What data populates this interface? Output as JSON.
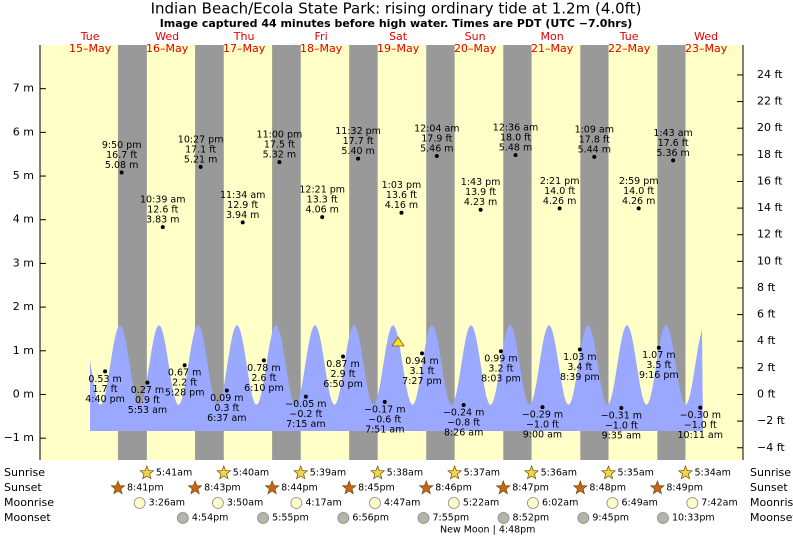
{
  "chart_data": {
    "type": "tide",
    "title": "Indian Beach/Ecola State Park: rising  ordinary tide at 1.2m (4.0ft)",
    "subtitle": "Image captured 44 minutes before high water. Times are PDT (UTC −7.0hrs)",
    "ylim": [
      -1.5,
      8
    ],
    "yticks": [
      {
        "value": -1,
        "label": "−1 m"
      },
      {
        "value": 0,
        "label": "0 m"
      },
      {
        "value": 1,
        "label": "1 m"
      },
      {
        "value": 2,
        "label": "2 m"
      },
      {
        "value": 3,
        "label": "3 m"
      },
      {
        "value": 4,
        "label": "4 m"
      },
      {
        "value": 5,
        "label": "5 m"
      },
      {
        "value": 6,
        "label": "6 m"
      },
      {
        "value": 7,
        "label": "7 m"
      }
    ],
    "y2lim": [
      -4.92,
      26.25
    ],
    "y2ticks": [
      {
        "value": -4,
        "label": "−4 ft"
      },
      {
        "value": -2,
        "label": "−2 ft"
      },
      {
        "value": 0,
        "label": "0 ft"
      },
      {
        "value": 2,
        "label": "2 ft"
      },
      {
        "value": 4,
        "label": "4 ft"
      },
      {
        "value": 6,
        "label": "6 ft"
      },
      {
        "value": 8,
        "label": "8 ft"
      },
      {
        "value": 10,
        "label": "10 ft"
      },
      {
        "value": 12,
        "label": "12 ft"
      },
      {
        "value": 14,
        "label": "14 ft"
      },
      {
        "value": 16,
        "label": "16 ft"
      },
      {
        "value": 18,
        "label": "18 ft"
      },
      {
        "value": 20,
        "label": "20 ft"
      },
      {
        "value": 22,
        "label": "22 ft"
      },
      {
        "value": 24,
        "label": "24 ft"
      }
    ],
    "fill_color": "#9aa8ff",
    "day_color": "#ffffc8",
    "night_color": "#999999",
    "days": [
      {
        "weekday": "Tue",
        "date": "15–May",
        "tides": [
          {
            "time": "4:40 pm",
            "m": {
              "value": 0.53,
              "label": "0.53 m"
            },
            "ft": {
              "value": 1.7,
              "label": "1.7 ft"
            }
          },
          {
            "time": "9:50 pm",
            "m": {
              "value": 5.08,
              "label": "5.08 m"
            },
            "ft": {
              "value": 16.7,
              "label": "16.7 ft"
            }
          }
        ]
      },
      {
        "weekday": "Wed",
        "date": "16–May",
        "tides": [
          {
            "time": "5:53 am",
            "m": {
              "value": 0.27,
              "label": "0.27 m"
            },
            "ft": {
              "value": 0.9,
              "label": "0.9 ft"
            }
          },
          {
            "time": "10:39 am",
            "m": {
              "value": 3.83,
              "label": "3.83 m"
            },
            "ft": {
              "value": 12.6,
              "label": "12.6 ft"
            }
          },
          {
            "time": "5:28 pm",
            "m": {
              "value": 0.67,
              "label": "0.67 m"
            },
            "ft": {
              "value": 2.2,
              "label": "2.2 ft"
            }
          },
          {
            "time": "10:27 pm",
            "m": {
              "value": 5.21,
              "label": "5.21 m"
            },
            "ft": {
              "value": 17.1,
              "label": "17.1 ft"
            }
          }
        ]
      },
      {
        "weekday": "Thu",
        "date": "17–May",
        "tides": [
          {
            "time": "6:37 am",
            "m": {
              "value": 0.09,
              "label": "0.09 m"
            },
            "ft": {
              "value": 0.3,
              "label": "0.3 ft"
            }
          },
          {
            "time": "11:34 am",
            "m": {
              "value": 3.94,
              "label": "3.94 m"
            },
            "ft": {
              "value": 12.9,
              "label": "12.9 ft"
            }
          },
          {
            "time": "6:10 pm",
            "m": {
              "value": 0.78,
              "label": "0.78 m"
            },
            "ft": {
              "value": 2.6,
              "label": "2.6 ft"
            }
          },
          {
            "time": "11:00 pm",
            "m": {
              "value": 5.32,
              "label": "5.32 m"
            },
            "ft": {
              "value": 17.5,
              "label": "17.5 ft"
            }
          }
        ]
      },
      {
        "weekday": "Fri",
        "date": "18–May",
        "tides": [
          {
            "time": "7:15 am",
            "m": {
              "value": -0.05,
              "label": "−0.05 m"
            },
            "ft": {
              "value": -0.2,
              "label": "−0.2 ft"
            }
          },
          {
            "time": "12:21 pm",
            "m": {
              "value": 4.06,
              "label": "4.06 m"
            },
            "ft": {
              "value": 13.3,
              "label": "13.3 ft"
            }
          },
          {
            "time": "6:50 pm",
            "m": {
              "value": 0.87,
              "label": "0.87 m"
            },
            "ft": {
              "value": 2.9,
              "label": "2.9 ft"
            }
          },
          {
            "time": "11:32 pm",
            "m": {
              "value": 5.4,
              "label": "5.40 m"
            },
            "ft": {
              "value": 17.7,
              "label": "17.7 ft"
            }
          }
        ]
      },
      {
        "weekday": "Sat",
        "date": "19–May",
        "tides": [
          {
            "time": "7:51 am",
            "m": {
              "value": -0.17,
              "label": "−0.17 m"
            },
            "ft": {
              "value": -0.6,
              "label": "−0.6 ft"
            }
          },
          {
            "time": "1:03 pm",
            "m": {
              "value": 4.16,
              "label": "4.16 m"
            },
            "ft": {
              "value": 13.6,
              "label": "13.6 ft"
            }
          },
          {
            "time": "7:27 pm",
            "m": {
              "value": 0.94,
              "label": "0.94 m"
            },
            "ft": {
              "value": 3.1,
              "label": "3.1 ft"
            }
          }
        ]
      },
      {
        "weekday": "Sun",
        "date": "20–May",
        "tides": [
          {
            "time": "12:04 am",
            "m": {
              "value": 5.46,
              "label": "5.46 m"
            },
            "ft": {
              "value": 17.9,
              "label": "17.9 ft"
            }
          },
          {
            "time": "8:26 am",
            "m": {
              "value": -0.24,
              "label": "−0.24 m"
            },
            "ft": {
              "value": -0.8,
              "label": "−0.8 ft"
            }
          },
          {
            "time": "1:43 pm",
            "m": {
              "value": 4.23,
              "label": "4.23 m"
            },
            "ft": {
              "value": 13.9,
              "label": "13.9 ft"
            }
          },
          {
            "time": "8:03 pm",
            "m": {
              "value": 0.99,
              "label": "0.99 m"
            },
            "ft": {
              "value": 3.2,
              "label": "3.2 ft"
            }
          }
        ]
      },
      {
        "weekday": "Mon",
        "date": "21–May",
        "tides": [
          {
            "time": "12:36 am",
            "m": {
              "value": 5.48,
              "label": "5.48 m"
            },
            "ft": {
              "value": 18.0,
              "label": "18.0 ft"
            }
          },
          {
            "time": "9:00 am",
            "m": {
              "value": -0.29,
              "label": "−0.29 m"
            },
            "ft": {
              "value": -1.0,
              "label": "−1.0 ft"
            }
          },
          {
            "time": "2:21 pm",
            "m": {
              "value": 4.26,
              "label": "4.26 m"
            },
            "ft": {
              "value": 14.0,
              "label": "14.0 ft"
            }
          },
          {
            "time": "8:39 pm",
            "m": {
              "value": 1.03,
              "label": "1.03 m"
            },
            "ft": {
              "value": 3.4,
              "label": "3.4 ft"
            }
          }
        ]
      },
      {
        "weekday": "Tue",
        "date": "22–May",
        "tides": [
          {
            "time": "1:09 am",
            "m": {
              "value": 5.44,
              "label": "5.44 m"
            },
            "ft": {
              "value": 17.8,
              "label": "17.8 ft"
            }
          },
          {
            "time": "9:35 am",
            "m": {
              "value": -0.31,
              "label": "−0.31 m"
            },
            "ft": {
              "value": -1.0,
              "label": "−1.0 ft"
            }
          },
          {
            "time": "2:59 pm",
            "m": {
              "value": 4.26,
              "label": "4.26 m"
            },
            "ft": {
              "value": 14.0,
              "label": "14.0 ft"
            }
          },
          {
            "time": "9:16 pm",
            "m": {
              "value": 1.07,
              "label": "1.07 m"
            },
            "ft": {
              "value": 3.5,
              "label": "3.5 ft"
            }
          }
        ]
      },
      {
        "weekday": "Wed",
        "date": "23–May",
        "tides": [
          {
            "time": "1:43 am",
            "m": {
              "value": 5.36,
              "label": "5.36 m"
            },
            "ft": {
              "value": 17.6,
              "label": "17.6 ft"
            }
          },
          {
            "time": "10:11 am",
            "m": {
              "value": -0.3,
              "label": "−0.30 m"
            },
            "ft": {
              "value": -1.0,
              "label": "−1.0 ft"
            }
          }
        ]
      }
    ],
    "rows": [
      {
        "label": "Sunrise",
        "icon": "sun",
        "color": "#f3d44a",
        "times": [
          null,
          "5:41am",
          "5:40am",
          "5:39am",
          "5:38am",
          "5:37am",
          "5:36am",
          "5:35am",
          "5:34am"
        ]
      },
      {
        "label": "Sunset",
        "icon": "sun",
        "color": "#c8641e",
        "times": [
          "8:41pm",
          "8:43pm",
          "8:44pm",
          "8:45pm",
          "8:46pm",
          "8:47pm",
          "8:48pm",
          "8:49pm",
          null
        ]
      },
      {
        "label": "Moonrise",
        "icon": "moon",
        "color": "#fffcc8",
        "times": [
          null,
          "3:26am",
          "3:50am",
          "4:17am",
          "4:47am",
          "5:22am",
          "6:02am",
          "6:49am",
          "7:42am"
        ]
      },
      {
        "label": "Moonset",
        "icon": "moon",
        "color": "#b4b4a8",
        "times": [
          null,
          "4:54pm",
          "5:55pm",
          "6:56pm",
          "7:55pm",
          "8:52pm",
          "9:45pm",
          "10:33pm",
          null
        ]
      }
    ],
    "moon_phase": "New Moon | 4:48pm"
  }
}
